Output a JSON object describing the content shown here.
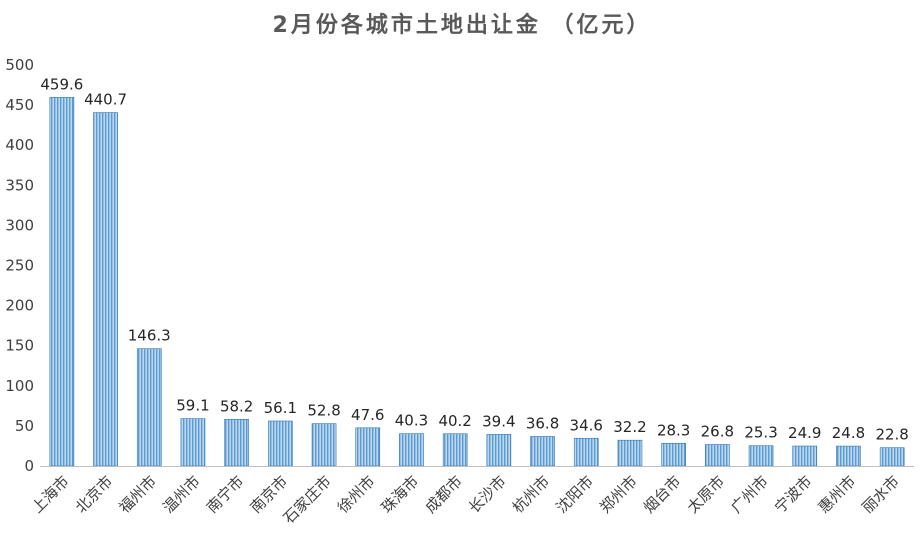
{
  "chart_data": {
    "type": "bar",
    "title": "2月份各城市土地出让金  （亿元）",
    "xlabel": "",
    "ylabel": "",
    "ylim": [
      0,
      500
    ],
    "yticks": [
      0,
      50,
      100,
      150,
      200,
      250,
      300,
      350,
      400,
      450,
      500
    ],
    "grid": false,
    "legend": "none",
    "categories": [
      "上海市",
      "北京市",
      "福州市",
      "温州市",
      "南宁市",
      "南京市",
      "石家庄市",
      "徐州市",
      "珠海市",
      "成都市",
      "长沙市",
      "杭州市",
      "沈阳市",
      "郑州市",
      "烟台市",
      "太原市",
      "广州市",
      "宁波市",
      "惠州市",
      "丽水市"
    ],
    "values": [
      459.6,
      440.7,
      146.3,
      59.1,
      58.2,
      56.1,
      52.8,
      47.6,
      40.3,
      40.2,
      39.4,
      36.8,
      34.6,
      32.2,
      28.3,
      26.8,
      25.3,
      24.9,
      24.8,
      22.8
    ],
    "data_labels": [
      "459.6",
      "440.7",
      "146.3",
      "59.1",
      "58.2",
      "56.1",
      "52.8",
      "47.6",
      "40.3",
      "40.2",
      "39.4",
      "36.8",
      "34.6",
      "32.2",
      "28.3",
      "26.8",
      "25.3",
      "24.9",
      "24.8",
      "22.8"
    ],
    "colors": {
      "bar_fill": "#9dc3e6",
      "bar_stripe": "#5b9bd5",
      "bar_edge": "#2e75b6",
      "axis": "#bfbfbf"
    }
  }
}
